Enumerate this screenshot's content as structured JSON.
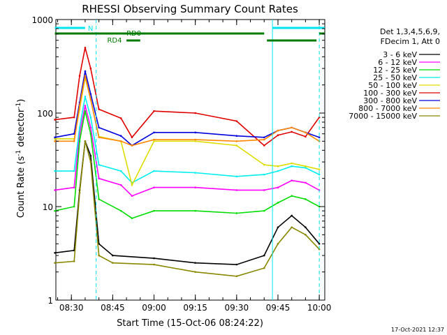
{
  "chart_data": {
    "type": "line",
    "title": "RHESSI Observing Summary Count Rates",
    "xlabel": "Start Time (15-Oct-06 08:24:22)",
    "ylabel": "Count Rate (s",
    "ylabel_sup1": "-1",
    "ylabel_mid": " detector",
    "ylabel_sup2": "-1",
    "ylabel_end": ")",
    "y_scale": "log",
    "ylim": [
      1,
      1000
    ],
    "xlim": [
      "08:24:22",
      "10:02:00"
    ],
    "x_ticks": [
      "08:30",
      "08:45",
      "09:00",
      "09:15",
      "09:30",
      "09:45",
      "10:00"
    ],
    "y_ticks": [
      "1",
      "10",
      "100",
      "1000"
    ],
    "legend_position": "right",
    "legend_header": [
      "Det 1,3,4,5,6,9,",
      "FDecim 1, Att 0"
    ],
    "footer_date": "17-Oct-2021 12:37",
    "flags": [
      {
        "label": "N",
        "color": "#00e5ee"
      },
      {
        "label": "RD0",
        "color": "#007a00"
      },
      {
        "label": "RD4",
        "color": "#007a00"
      }
    ],
    "series": [
      {
        "name": "3 - 6 keV",
        "color": "#000000",
        "points": [
          [
            "08:24",
            3.2
          ],
          [
            "08:31",
            3.4
          ],
          [
            "08:33",
            15
          ],
          [
            "08:35",
            50
          ],
          [
            "08:37",
            35
          ],
          [
            "08:40",
            4
          ],
          [
            "08:45",
            3
          ],
          [
            "09:00",
            2.8
          ],
          [
            "09:15",
            2.5
          ],
          [
            "09:30",
            2.4
          ],
          [
            "09:40",
            3
          ],
          [
            "09:45",
            6
          ],
          [
            "09:50",
            8
          ],
          [
            "09:55",
            6
          ],
          [
            "10:00",
            4
          ]
        ]
      },
      {
        "name": "6 - 12 keV",
        "color": "#ff00ff",
        "points": [
          [
            "08:24",
            15
          ],
          [
            "08:31",
            16
          ],
          [
            "08:33",
            60
          ],
          [
            "08:35",
            120
          ],
          [
            "08:37",
            70
          ],
          [
            "08:40",
            20
          ],
          [
            "08:48",
            17
          ],
          [
            "08:52",
            13
          ],
          [
            "09:00",
            16
          ],
          [
            "09:15",
            16
          ],
          [
            "09:30",
            15
          ],
          [
            "09:40",
            15
          ],
          [
            "09:45",
            16
          ],
          [
            "09:50",
            19
          ],
          [
            "09:55",
            18
          ],
          [
            "10:00",
            15
          ]
        ]
      },
      {
        "name": "12 - 25 keV",
        "color": "#00dd00",
        "points": [
          [
            "08:24",
            9
          ],
          [
            "08:31",
            10
          ],
          [
            "08:33",
            50
          ],
          [
            "08:35",
            105
          ],
          [
            "08:37",
            60
          ],
          [
            "08:40",
            12
          ],
          [
            "08:48",
            9
          ],
          [
            "08:52",
            7.5
          ],
          [
            "09:00",
            9
          ],
          [
            "09:15",
            9
          ],
          [
            "09:30",
            8.5
          ],
          [
            "09:40",
            9
          ],
          [
            "09:45",
            11
          ],
          [
            "09:50",
            13
          ],
          [
            "09:55",
            12
          ],
          [
            "10:00",
            10
          ]
        ]
      },
      {
        "name": "25 - 50 keV",
        "color": "#00eeee",
        "points": [
          [
            "08:24",
            24
          ],
          [
            "08:31",
            24
          ],
          [
            "08:33",
            70
          ],
          [
            "08:35",
            150
          ],
          [
            "08:37",
            90
          ],
          [
            "08:40",
            28
          ],
          [
            "08:48",
            24
          ],
          [
            "08:52",
            18
          ],
          [
            "09:00",
            24
          ],
          [
            "09:15",
            23
          ],
          [
            "09:30",
            21
          ],
          [
            "09:40",
            22
          ],
          [
            "09:45",
            24
          ],
          [
            "09:50",
            27
          ],
          [
            "09:55",
            26
          ],
          [
            "10:00",
            22
          ]
        ]
      },
      {
        "name": "50 - 100 keV",
        "color": "#dddd00",
        "points": [
          [
            "08:24",
            53
          ],
          [
            "08:31",
            53
          ],
          [
            "08:33",
            110
          ],
          [
            "08:35",
            240
          ],
          [
            "08:37",
            140
          ],
          [
            "08:40",
            56
          ],
          [
            "08:48",
            50
          ],
          [
            "08:52",
            17
          ],
          [
            "09:00",
            50
          ],
          [
            "09:15",
            50
          ],
          [
            "09:30",
            45
          ],
          [
            "09:40",
            28
          ],
          [
            "09:45",
            27
          ],
          [
            "09:50",
            29
          ],
          [
            "09:55",
            27
          ],
          [
            "10:00",
            25
          ]
        ]
      },
      {
        "name": "100 - 300 keV",
        "color": "#e00000",
        "points": [
          [
            "08:24",
            85
          ],
          [
            "08:31",
            90
          ],
          [
            "08:33",
            250
          ],
          [
            "08:35",
            500
          ],
          [
            "08:37",
            300
          ],
          [
            "08:40",
            110
          ],
          [
            "08:48",
            88
          ],
          [
            "08:52",
            55
          ],
          [
            "09:00",
            105
          ],
          [
            "09:15",
            100
          ],
          [
            "09:30",
            82
          ],
          [
            "09:40",
            45
          ],
          [
            "09:45",
            58
          ],
          [
            "09:50",
            63
          ],
          [
            "09:55",
            56
          ],
          [
            "10:00",
            90
          ]
        ]
      },
      {
        "name": "300 - 800 keV",
        "color": "#0000dd",
        "points": [
          [
            "08:24",
            55
          ],
          [
            "08:31",
            60
          ],
          [
            "08:33",
            130
          ],
          [
            "08:35",
            280
          ],
          [
            "08:37",
            160
          ],
          [
            "08:40",
            70
          ],
          [
            "08:48",
            57
          ],
          [
            "08:52",
            45
          ],
          [
            "09:00",
            62
          ],
          [
            "09:15",
            62
          ],
          [
            "09:30",
            57
          ],
          [
            "09:40",
            55
          ],
          [
            "09:45",
            65
          ],
          [
            "09:50",
            70
          ],
          [
            "09:55",
            62
          ],
          [
            "10:00",
            55
          ]
        ]
      },
      {
        "name": "800 - 7000 keV",
        "color": "#ff8800",
        "points": [
          [
            "08:24",
            50
          ],
          [
            "08:31",
            50
          ],
          [
            "08:33",
            120
          ],
          [
            "08:35",
            250
          ],
          [
            "08:37",
            140
          ],
          [
            "08:40",
            55
          ],
          [
            "08:48",
            50
          ],
          [
            "08:52",
            45
          ],
          [
            "09:00",
            52
          ],
          [
            "09:15",
            52
          ],
          [
            "09:30",
            50
          ],
          [
            "09:40",
            52
          ],
          [
            "09:45",
            65
          ],
          [
            "09:50",
            70
          ],
          [
            "09:55",
            62
          ],
          [
            "10:00",
            50
          ]
        ]
      },
      {
        "name": "7000 - 15000 keV",
        "color": "#888800",
        "points": [
          [
            "08:24",
            2.5
          ],
          [
            "08:31",
            2.6
          ],
          [
            "08:33",
            14
          ],
          [
            "08:35",
            50
          ],
          [
            "08:37",
            30
          ],
          [
            "08:40",
            3
          ],
          [
            "08:45",
            2.5
          ],
          [
            "09:00",
            2.4
          ],
          [
            "09:15",
            2
          ],
          [
            "09:30",
            1.8
          ],
          [
            "09:40",
            2.2
          ],
          [
            "09:45",
            4
          ],
          [
            "09:50",
            6
          ],
          [
            "09:55",
            5
          ],
          [
            "10:00",
            3.5
          ]
        ]
      }
    ]
  }
}
